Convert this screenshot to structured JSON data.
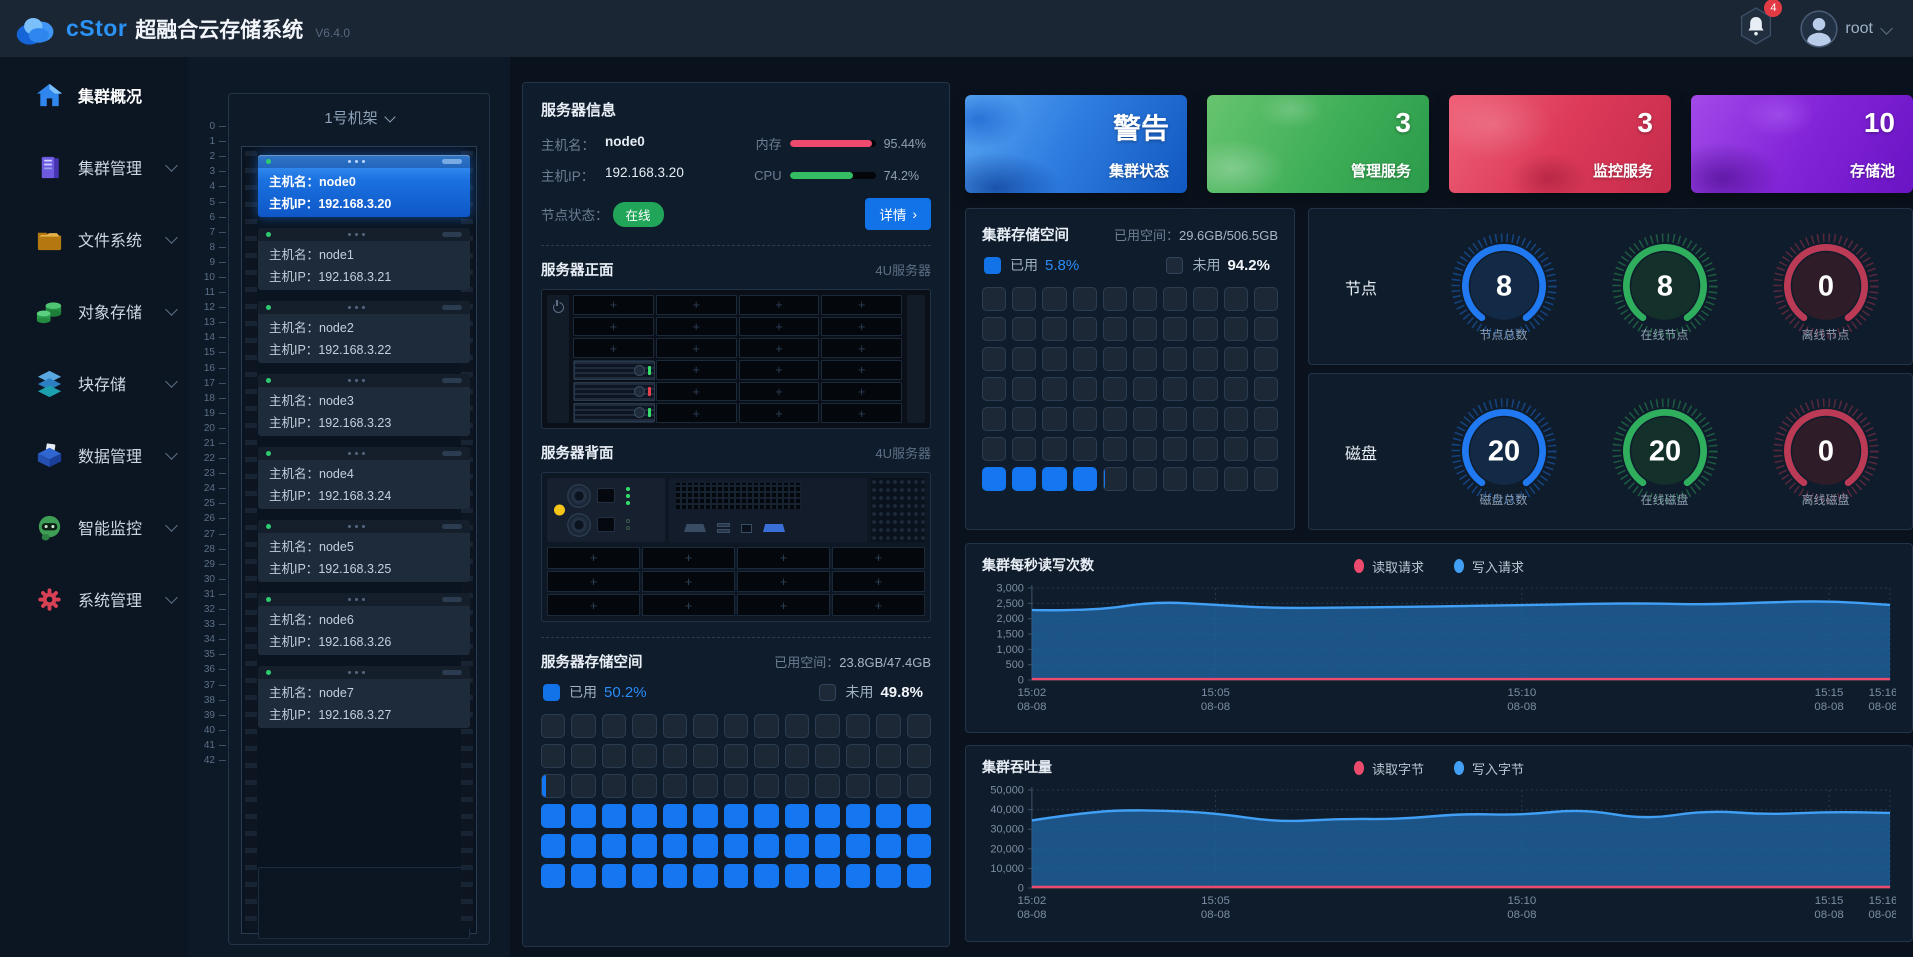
{
  "header": {
    "logo": "cStor",
    "title": "超融合云存储系统",
    "version": "V6.4.0",
    "notification_count": "4",
    "user": "root"
  },
  "sidebar": [
    {
      "key": "overview",
      "label": "集群概况",
      "icon": "home-icon",
      "active": true,
      "chevron": false
    },
    {
      "key": "cluster",
      "label": "集群管理",
      "icon": "server-cabinet-icon",
      "active": false,
      "chevron": true
    },
    {
      "key": "file",
      "label": "文件系统",
      "icon": "folder-icon",
      "active": false,
      "chevron": true
    },
    {
      "key": "object",
      "label": "对象存储",
      "icon": "object-storage-icon",
      "active": false,
      "chevron": true
    },
    {
      "key": "block",
      "label": "块存储",
      "icon": "block-storage-icon",
      "active": false,
      "chevron": true
    },
    {
      "key": "data",
      "label": "数据管理",
      "icon": "data-manage-icon",
      "active": false,
      "chevron": true
    },
    {
      "key": "monitor",
      "label": "智能监控",
      "icon": "robot-monitor-icon",
      "active": false,
      "chevron": true
    },
    {
      "key": "system",
      "label": "系统管理",
      "icon": "gear-icon",
      "active": false,
      "chevron": true
    }
  ],
  "rack": {
    "title": "1号机架",
    "hostname_label": "主机名：",
    "ip_label": "主机IP：",
    "ruler": [
      0,
      1,
      2,
      3,
      4,
      5,
      6,
      7,
      8,
      9,
      10,
      11,
      12,
      13,
      14,
      15,
      16,
      17,
      18,
      19,
      20,
      21,
      22,
      23,
      24,
      25,
      26,
      27,
      28,
      29,
      30,
      31,
      32,
      33,
      34,
      35,
      36,
      37,
      38,
      39,
      40,
      41,
      42
    ],
    "nodes": [
      {
        "name": "node0",
        "ip": "192.168.3.20",
        "selected": true
      },
      {
        "name": "node1",
        "ip": "192.168.3.21",
        "selected": false
      },
      {
        "name": "node2",
        "ip": "192.168.3.22",
        "selected": false
      },
      {
        "name": "node3",
        "ip": "192.168.3.23",
        "selected": false
      },
      {
        "name": "node4",
        "ip": "192.168.3.24",
        "selected": false
      },
      {
        "name": "node5",
        "ip": "192.168.3.25",
        "selected": false
      },
      {
        "name": "node6",
        "ip": "192.168.3.26",
        "selected": false
      },
      {
        "name": "node7",
        "ip": "192.168.3.27",
        "selected": false
      }
    ]
  },
  "server": {
    "panel_title": "服务器信息",
    "hostname_label": "主机名：",
    "hostname": "node0",
    "ip_label": "主机IP：",
    "ip": "192.168.3.20",
    "mem_label": "内存",
    "mem_value": "95.44%",
    "mem_pct": 95.44,
    "cpu_label": "CPU",
    "cpu_value": "74.2%",
    "cpu_pct": 74.2,
    "status_label": "节点状态：",
    "status": "在线",
    "detail_button": "详情",
    "front_title": "服务器正面",
    "front_tag": "4U服务器",
    "rear_title": "服务器背面",
    "rear_tag": "4U服务器",
    "storage_title": "服务器存储空间",
    "used_space_label": "已用空间：",
    "used_space": "23.8GB/47.4GB",
    "used_legend": "已用",
    "used_pct_text": "50.2%",
    "used_pct": 50.2,
    "free_legend": "未用",
    "free_pct_text": "49.8%",
    "grid_cols": 13,
    "grid_rows": 6
  },
  "cards": [
    {
      "theme": "blue",
      "value": "警告",
      "label": "集群状态"
    },
    {
      "theme": "green",
      "value": "3",
      "label": "管理服务"
    },
    {
      "theme": "red",
      "value": "3",
      "label": "监控服务"
    },
    {
      "theme": "purple",
      "value": "10",
      "label": "存储池"
    }
  ],
  "cluster_storage": {
    "title": "集群存储空间",
    "used_space_label": "已用空间：",
    "used_space": "29.6GB/506.5GB",
    "used_legend": "已用",
    "used_pct_text": "5.8%",
    "used_pct": 5.8,
    "free_legend": "未用",
    "free_pct_text": "94.2%",
    "grid_cols": 10,
    "grid_rows": 7
  },
  "gauge_groups": [
    {
      "group": "节点",
      "items": [
        {
          "value": "8",
          "label": "节点总数",
          "color": "#2079f0",
          "tint": "#132a47"
        },
        {
          "value": "8",
          "label": "在线节点",
          "color": "#2fae5e",
          "tint": "#13302a"
        },
        {
          "value": "0",
          "label": "离线节点",
          "color": "#bb3a55",
          "tint": "#2e1c29"
        }
      ]
    },
    {
      "group": "磁盘",
      "items": [
        {
          "value": "20",
          "label": "磁盘总数",
          "color": "#2079f0",
          "tint": "#132a47"
        },
        {
          "value": "20",
          "label": "在线磁盘",
          "color": "#2fae5e",
          "tint": "#13302a"
        },
        {
          "value": "0",
          "label": "离线磁盘",
          "color": "#bb3a55",
          "tint": "#2e1c29"
        }
      ]
    }
  ],
  "chart_data": [
    {
      "type": "area",
      "title": "集群每秒读写次数",
      "ylim": [
        0,
        3000
      ],
      "yticks": [
        0,
        500,
        1000,
        1500,
        2000,
        2500,
        3000
      ],
      "grid": true,
      "legend_position": "top",
      "xticks": [
        {
          "t": "15:02",
          "d": "08-08",
          "f": 0
        },
        {
          "t": "15:05",
          "d": "08-08",
          "f": 0.214
        },
        {
          "t": "15:10",
          "d": "08-08",
          "f": 0.571
        },
        {
          "t": "15:15",
          "d": "08-08",
          "f": 0.929
        },
        {
          "t": "15:16",
          "d": "08-08",
          "f": 1
        }
      ],
      "series": [
        {
          "name": "读取请求",
          "color": "#ec4b6d",
          "fill": "rgba(236,75,109,0.15)",
          "values": [
            30,
            30,
            30,
            30,
            30,
            30,
            30,
            30,
            30,
            30,
            30,
            30,
            30,
            30,
            30
          ]
        },
        {
          "name": "写入请求",
          "color": "#41a0f5",
          "fill": "rgba(31,99,160,0.8)",
          "values": [
            2280,
            2250,
            2560,
            2450,
            2340,
            2360,
            2380,
            2410,
            2440,
            2480,
            2500,
            2460,
            2530,
            2580,
            2450
          ]
        }
      ]
    },
    {
      "type": "area",
      "title": "集群吞吐量",
      "ylim": [
        0,
        50000
      ],
      "yticks": [
        0,
        10000,
        20000,
        30000,
        40000,
        50000
      ],
      "grid": true,
      "legend_position": "top",
      "xticks": [
        {
          "t": "15:02",
          "d": "08-08",
          "f": 0
        },
        {
          "t": "15:05",
          "d": "08-08",
          "f": 0.214
        },
        {
          "t": "15:10",
          "d": "08-08",
          "f": 0.571
        },
        {
          "t": "15:15",
          "d": "08-08",
          "f": 0.929
        },
        {
          "t": "15:16",
          "d": "08-08",
          "f": 1
        }
      ],
      "series": [
        {
          "name": "读取字节",
          "color": "#ec4b6d",
          "fill": "rgba(236,75,109,0.15)",
          "values": [
            500,
            500,
            500,
            500,
            500,
            500,
            500,
            500,
            500,
            500,
            500,
            500,
            500,
            500,
            500
          ]
        },
        {
          "name": "写入字节",
          "color": "#41a0f5",
          "fill": "rgba(31,99,160,0.8)",
          "values": [
            34500,
            39300,
            39800,
            38200,
            33600,
            35300,
            35100,
            37900,
            37200,
            40300,
            34900,
            39600,
            37400,
            38900,
            38300
          ]
        }
      ]
    }
  ]
}
